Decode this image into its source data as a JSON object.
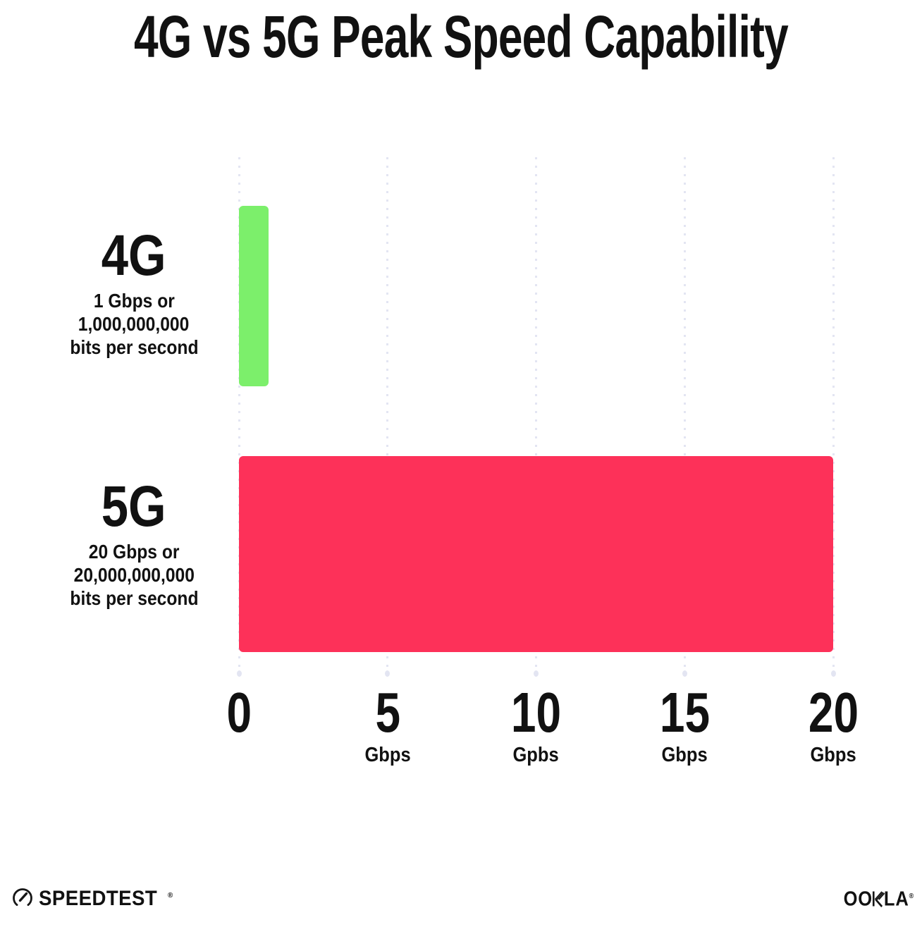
{
  "title": "4G vs 5G Peak Speed Capability",
  "chart_data": {
    "type": "bar",
    "orientation": "horizontal",
    "title": "4G vs 5G Peak Speed Capability",
    "categories": [
      "4G",
      "5G"
    ],
    "values": [
      1,
      20
    ],
    "unit": "Gbps",
    "xlim": [
      0,
      20
    ],
    "grid": "vertical-dotted",
    "legend": "none",
    "rows": [
      {
        "name": "4G",
        "value": 1,
        "color": "#7CEF6B",
        "desc_lines": [
          "1 Gbps or",
          "1,000,000,000",
          "bits per second"
        ]
      },
      {
        "name": "5G",
        "value": 20,
        "color": "#FD3159",
        "desc_lines": [
          "20 Gbps or",
          "20,000,000,000",
          "bits per second"
        ]
      }
    ],
    "x_ticks": [
      {
        "value": 0,
        "label": "0",
        "unit": ""
      },
      {
        "value": 5,
        "label": "5",
        "unit": "Gbps"
      },
      {
        "value": 10,
        "label": "10",
        "unit": "Gpbs"
      },
      {
        "value": 15,
        "label": "15",
        "unit": "Gbps"
      },
      {
        "value": 20,
        "label": "20",
        "unit": "Gbps"
      }
    ]
  },
  "footer": {
    "speedtest_label": "SPEEDTEST",
    "speedtest_mark": "®",
    "ookla_label_left": "OO",
    "ookla_label_right": "LA",
    "ookla_mark": "®"
  },
  "colors": {
    "background": "#FFFFFF",
    "text": "#111111",
    "gridline": "#E3E5F2",
    "bar_4g": "#7CEF6B",
    "bar_5g": "#FD3159"
  }
}
